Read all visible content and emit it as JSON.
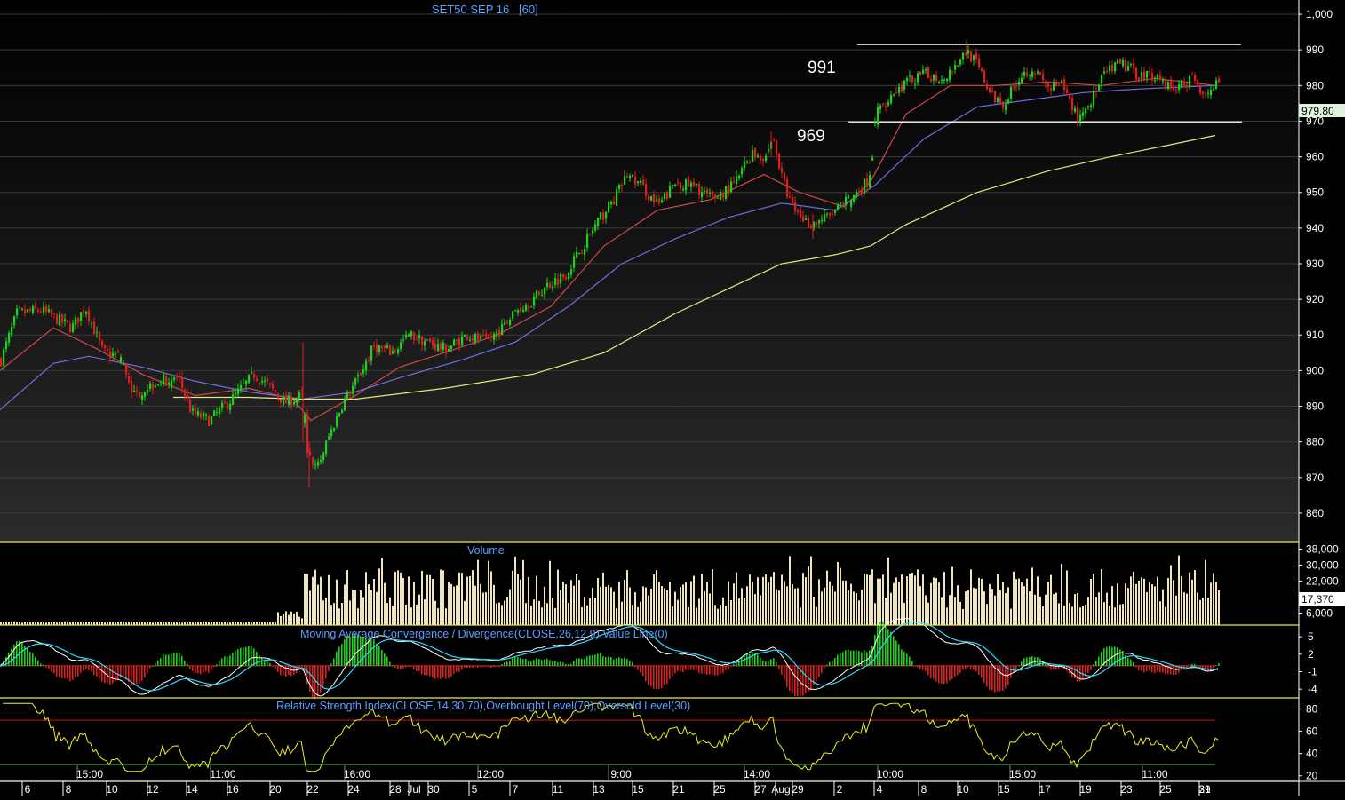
{
  "title": "SET50 SEP 16   [60]",
  "colors": {
    "up": "#19d419",
    "down": "#e01e1e",
    "sma_fast": "#d0484a",
    "sma_mid": "#6f6fe0",
    "sma_slow": "#e6e680",
    "panel_border": "#e8e84a",
    "axis_text": "#ffffff",
    "title_text": "#5aa0ff",
    "volume_bar": "#f0e6be",
    "macd_line": "#ffffff",
    "macd_signal": "#2ad8ff",
    "rsi_line": "#f0f020",
    "rsi_overbought": "#c01e1e",
    "rsi_oversold": "#1e8c1e",
    "last_price_bg": "#dff3df"
  },
  "chart_data": [
    {
      "type": "candlestick",
      "title": "SET50 SEP 16   [60]",
      "ylim": [
        852,
        1004
      ],
      "y_ticks": [
        "860",
        "870",
        "880",
        "890",
        "900",
        "910",
        "920",
        "930",
        "940",
        "950",
        "960",
        "970",
        "980",
        "990",
        "1,000"
      ],
      "last_price": 979.8,
      "last_price_label": "979.80",
      "annotations": [
        {
          "label": "991",
          "value": 991
        },
        {
          "label": "969",
          "value": 969
        }
      ],
      "close_anchors": [
        [
          0,
          903
        ],
        [
          18,
          916
        ],
        [
          45,
          917
        ],
        [
          80,
          912
        ],
        [
          95,
          918
        ],
        [
          115,
          905
        ],
        [
          135,
          904
        ],
        [
          150,
          893
        ],
        [
          175,
          897
        ],
        [
          200,
          898
        ],
        [
          215,
          888
        ],
        [
          235,
          886
        ],
        [
          260,
          892
        ],
        [
          285,
          899
        ],
        [
          300,
          896
        ],
        [
          320,
          891
        ],
        [
          340,
          893
        ],
        [
          345,
          878
        ],
        [
          355,
          872
        ],
        [
          370,
          882
        ],
        [
          385,
          891
        ],
        [
          400,
          897
        ],
        [
          420,
          907
        ],
        [
          440,
          905
        ],
        [
          460,
          910
        ],
        [
          480,
          908
        ],
        [
          500,
          906
        ],
        [
          525,
          910
        ],
        [
          545,
          908
        ],
        [
          565,
          912
        ],
        [
          580,
          917
        ],
        [
          600,
          920
        ],
        [
          615,
          924
        ],
        [
          635,
          927
        ],
        [
          655,
          935
        ],
        [
          670,
          941
        ],
        [
          690,
          948
        ],
        [
          705,
          955
        ],
        [
          720,
          952
        ],
        [
          740,
          946
        ],
        [
          760,
          953
        ],
        [
          785,
          951
        ],
        [
          800,
          948
        ],
        [
          825,
          952
        ],
        [
          845,
          961
        ],
        [
          860,
          960
        ],
        [
          870,
          965
        ],
        [
          878,
          955
        ],
        [
          890,
          946
        ],
        [
          910,
          941
        ],
        [
          930,
          943
        ],
        [
          955,
          948
        ],
        [
          975,
          953
        ],
        [
          980,
          958
        ],
        [
          985,
          972
        ],
        [
          1000,
          977
        ],
        [
          1020,
          981
        ],
        [
          1040,
          983
        ],
        [
          1060,
          982
        ],
        [
          1075,
          986
        ],
        [
          1088,
          990
        ],
        [
          1100,
          985
        ],
        [
          1115,
          977
        ],
        [
          1130,
          975
        ],
        [
          1145,
          982
        ],
        [
          1160,
          985
        ],
        [
          1180,
          979
        ],
        [
          1195,
          980
        ],
        [
          1212,
          971
        ],
        [
          1225,
          975
        ],
        [
          1245,
          984
        ],
        [
          1262,
          986
        ],
        [
          1280,
          983
        ],
        [
          1300,
          983
        ],
        [
          1320,
          979
        ],
        [
          1340,
          982
        ],
        [
          1355,
          978
        ],
        [
          1368,
          980
        ]
      ],
      "moving_averages": [
        {
          "color": "sma_fast",
          "values": [
            [
              0,
              900
            ],
            [
              60,
              912
            ],
            [
              110,
              906
            ],
            [
              160,
              899
            ],
            [
              220,
              893
            ],
            [
              280,
              895
            ],
            [
              330,
              892
            ],
            [
              350,
              886
            ],
            [
              400,
              893
            ],
            [
              450,
              901
            ],
            [
              500,
              905
            ],
            [
              560,
              910
            ],
            [
              620,
              918
            ],
            [
              680,
              935
            ],
            [
              740,
              945
            ],
            [
              800,
              948
            ],
            [
              860,
              955
            ],
            [
              900,
              950
            ],
            [
              950,
              946
            ],
            [
              980,
              953
            ],
            [
              1020,
              972
            ],
            [
              1070,
              980
            ],
            [
              1120,
              980
            ],
            [
              1180,
              981
            ],
            [
              1240,
              980
            ],
            [
              1300,
              982
            ],
            [
              1368,
              980
            ]
          ]
        },
        {
          "color": "sma_mid",
          "values": [
            [
              0,
              889
            ],
            [
              60,
              902
            ],
            [
              100,
              904
            ],
            [
              160,
              901
            ],
            [
              220,
              897
            ],
            [
              280,
              894
            ],
            [
              340,
              892
            ],
            [
              400,
              894
            ],
            [
              450,
              898
            ],
            [
              520,
              903
            ],
            [
              580,
              908
            ],
            [
              640,
              918
            ],
            [
              700,
              930
            ],
            [
              760,
              937
            ],
            [
              820,
              943
            ],
            [
              880,
              947
            ],
            [
              940,
              945
            ],
            [
              985,
              952
            ],
            [
              1040,
              965
            ],
            [
              1100,
              974
            ],
            [
              1160,
              976
            ],
            [
              1220,
              978
            ],
            [
              1280,
              979
            ],
            [
              1368,
              980
            ]
          ]
        },
        {
          "color": "sma_slow",
          "values": [
            [
              195,
              892.5
            ],
            [
              280,
              892.5
            ],
            [
              340,
              892
            ],
            [
              400,
              892
            ],
            [
              500,
              895
            ],
            [
              600,
              899
            ],
            [
              680,
              905
            ],
            [
              760,
              916
            ],
            [
              820,
              923
            ],
            [
              880,
              930
            ],
            [
              940,
              932.5
            ],
            [
              980,
              935
            ],
            [
              1020,
              941
            ],
            [
              1100,
              950
            ],
            [
              1180,
              956
            ],
            [
              1250,
              960
            ],
            [
              1310,
              963
            ],
            [
              1368,
              966
            ]
          ]
        }
      ],
      "horizontal_lines": [
        {
          "value": 991.5,
          "x_from": 965,
          "x_to": 1397
        },
        {
          "value": 969.8,
          "x_from": 955,
          "x_to": 1398
        }
      ],
      "x_ticks": [
        "6",
        "8",
        "10",
        "12",
        "14",
        "16",
        "20",
        "22",
        "24",
        "28",
        "30",
        "Jul",
        "5",
        "7",
        "11",
        "13",
        "15",
        "21",
        "25",
        "27",
        "29",
        "Aug",
        "2",
        "4",
        "8",
        "10",
        "15",
        "17",
        "19",
        "23",
        "25",
        "29",
        "31"
      ],
      "time_ticks": [
        "15:00",
        "11:00",
        "16:00",
        "12:00",
        "9:00",
        "14:00",
        "10:00",
        "15:00",
        "11:00"
      ]
    },
    {
      "type": "bar",
      "title": "Volume",
      "ylim": [
        0,
        40000
      ],
      "y_ticks": [
        "6,000",
        "22,000",
        "30,000",
        "38,000"
      ],
      "last_value": 17370,
      "last_value_label": "17,370"
    },
    {
      "type": "line",
      "title": "Moving Average Convergence / Divergence(CLOSE,26,12,9),Value Line(0)",
      "ylim": [
        -5.5,
        7
      ],
      "y_ticks": [
        "5",
        "2",
        "-1",
        "-4"
      ]
    },
    {
      "type": "line",
      "title": "Relative Strength Index(CLOSE,14,30,70),Overbought Level(70),Oversold Level(30)",
      "ylim": [
        15,
        90
      ],
      "y_ticks": [
        "80",
        "60",
        "40",
        "20"
      ],
      "overbought": 70,
      "oversold": 30
    }
  ]
}
